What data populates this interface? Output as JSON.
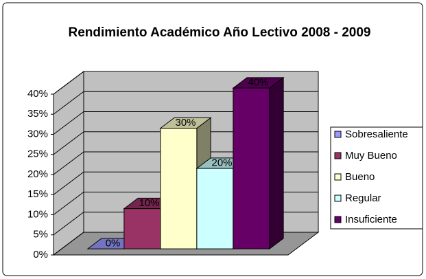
{
  "chart_data": {
    "type": "bar3d",
    "title": "Rendimiento Académico Año Lectivo 2008 - 2009",
    "categories": [
      "Sobresaliente",
      "Muy Bueno",
      "Bueno",
      "Regular",
      "Insuficiente"
    ],
    "values": [
      0,
      10,
      30,
      20,
      40
    ],
    "value_labels": [
      "0%",
      "10%",
      "30%",
      "20%",
      "40%"
    ],
    "colors": [
      "#9999ff",
      "#993366",
      "#ffffcc",
      "#ccffff",
      "#660066"
    ],
    "ylim": [
      0,
      40
    ],
    "yticks": [
      {
        "value": 0,
        "label": "0%"
      },
      {
        "value": 5,
        "label": "5%"
      },
      {
        "value": 10,
        "label": "10%"
      },
      {
        "value": 15,
        "label": "15%"
      },
      {
        "value": 20,
        "label": "20%"
      },
      {
        "value": 25,
        "label": "25%"
      },
      {
        "value": 30,
        "label": "30%"
      },
      {
        "value": 35,
        "label": "35%"
      },
      {
        "value": 40,
        "label": "40%"
      }
    ],
    "grid": true,
    "legend": "right"
  }
}
